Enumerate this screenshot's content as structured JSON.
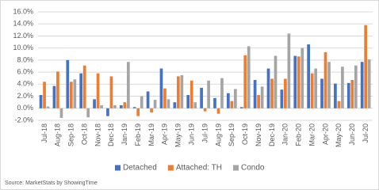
{
  "chart_data": {
    "type": "bar",
    "source": "Source: MarketStats by ShowingTime",
    "categories": [
      "Jul-18",
      "Aug-18",
      "Sep-18",
      "Oct-18",
      "Nov-18",
      "Dec-18",
      "Jan-19",
      "Feb-19",
      "Mar-19",
      "Apr-19",
      "May-19",
      "Jun-19",
      "Jul-19",
      "Aug-19",
      "Sep-19",
      "Oct-19",
      "Nov-19",
      "Dec-19",
      "Jan-20",
      "Feb-20",
      "Mar-20",
      "Apr-20",
      "May-20",
      "Jun-20",
      "Jul-20"
    ],
    "series": [
      {
        "name": "Detached",
        "color": "#4472c4",
        "values": [
          2.2,
          3.7,
          8.0,
          5.8,
          1.5,
          -1.3,
          0.5,
          0.2,
          2.8,
          6.6,
          1.0,
          2.2,
          3.4,
          1.7,
          2.5,
          0.2,
          4.7,
          6.6,
          3.1,
          8.7,
          10.6,
          4.9,
          4.1,
          4.2,
          7.7
        ]
      },
      {
        "name": "Attached: TH",
        "color": "#ed7d31",
        "values": [
          4.4,
          6.1,
          4.4,
          7.1,
          5.8,
          5.3,
          1.0,
          -1.3,
          -0.7,
          3.3,
          5.3,
          4.6,
          -0.5,
          -0.9,
          1.2,
          8.8,
          2.2,
          4.9,
          4.9,
          8.6,
          5.8,
          9.3,
          1.2,
          4.7,
          13.8
        ]
      },
      {
        "name": "Condo",
        "color": "#a5a5a5",
        "values": [
          0.3,
          -1.6,
          4.8,
          -1.5,
          0.5,
          0.5,
          7.7,
          2.0,
          1.4,
          1.5,
          5.5,
          1.0,
          4.6,
          5.0,
          3.2,
          10.3,
          3.6,
          8.7,
          12.4,
          10.0,
          6.6,
          7.7,
          6.9,
          7.1,
          8.1
        ]
      }
    ],
    "ylim": [
      -2,
      16
    ],
    "yticks": [
      {
        "value": -2,
        "label": "-2.0%"
      },
      {
        "value": 0,
        "label": "0.0%"
      },
      {
        "value": 2,
        "label": "2.0%"
      },
      {
        "value": 4,
        "label": "4.0%"
      },
      {
        "value": 6,
        "label": "6.0%"
      },
      {
        "value": 8,
        "label": "8.0%"
      },
      {
        "value": 10,
        "label": "10.0%"
      },
      {
        "value": 12,
        "label": "12.0%"
      },
      {
        "value": 14,
        "label": "14.0%"
      },
      {
        "value": 16,
        "label": "16.0%"
      }
    ],
    "grid": true,
    "legend": "bottom"
  }
}
